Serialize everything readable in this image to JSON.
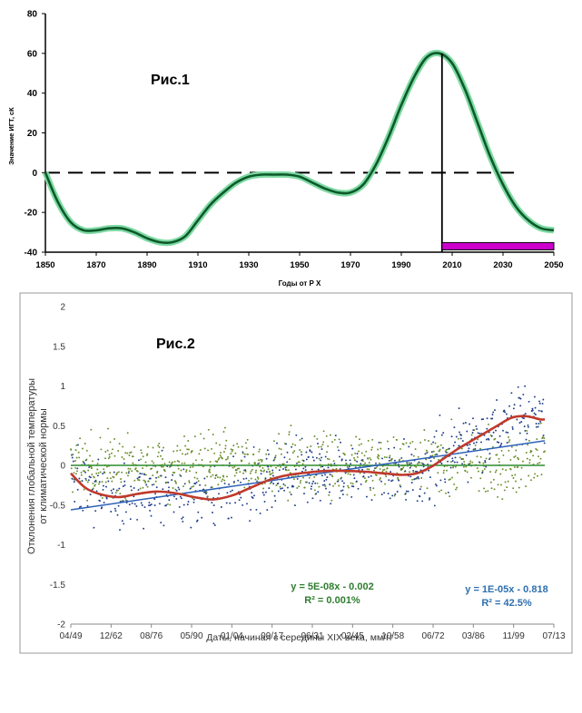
{
  "chart_data": [
    {
      "type": "line",
      "title": "Рис.1",
      "xlabel": "Годы от Р Х",
      "ylabel": "Значение ИГТ, сК",
      "xlim": [
        1850,
        2050
      ],
      "ylim": [
        -40,
        80
      ],
      "xticks": [
        1850,
        1870,
        1890,
        1910,
        1930,
        1950,
        1970,
        1990,
        2010,
        2030,
        2050
      ],
      "yticks": [
        80,
        60,
        40,
        20,
        0,
        -20,
        -40
      ],
      "grid": false,
      "series": [
        {
          "x": [
            1850,
            1855,
            1860,
            1865,
            1870,
            1875,
            1880,
            1885,
            1890,
            1895,
            1900,
            1905,
            1910,
            1915,
            1920,
            1925,
            1930,
            1935,
            1940,
            1945,
            1950,
            1955,
            1960,
            1965,
            1970,
            1975,
            1980,
            1985,
            1990,
            1995,
            2000,
            2005,
            2010,
            2015,
            2020,
            2025,
            2030,
            2035,
            2040,
            2045,
            2050
          ],
          "y": [
            0,
            -15,
            -25,
            -29,
            -29,
            -28,
            -28,
            -30,
            -33,
            -35,
            -35,
            -32,
            -24,
            -16,
            -10,
            -5,
            -2,
            -1,
            -1,
            -1,
            -2,
            -5,
            -8,
            -10,
            -10,
            -6,
            4,
            18,
            34,
            48,
            58,
            60,
            55,
            42,
            25,
            8,
            -6,
            -17,
            -24,
            -28,
            -29
          ]
        }
      ],
      "annotations": {
        "zero_dashed_line": true,
        "vertical_marker_x": 2006,
        "highlight_bar": {
          "x_from": 2006,
          "x_to": 2050,
          "y": -37,
          "color": "#cc00cc"
        }
      },
      "colors": {
        "curve": "#0c5a2a",
        "curve_glow": "#7fd9a3",
        "bar": "#cc00cc"
      }
    },
    {
      "type": "scatter",
      "title": "Рис.2",
      "xlabel": "Даты, начиная с середины XIX века, мм/гг",
      "ylabel": "Отклонения глобальной температуры от климатической нормы",
      "xticks": [
        "04/49",
        "12/62",
        "08/76",
        "05/90",
        "01/04",
        "09/17",
        "06/31",
        "02/45",
        "10/58",
        "06/72",
        "03/86",
        "11/99",
        "07/13"
      ],
      "ylim": [
        -2,
        2
      ],
      "yticks": [
        "2",
        "1.5",
        "1",
        "0.5",
        "0",
        "-0.5",
        "-1",
        "-1.5",
        "-2"
      ],
      "grid": false,
      "series": [
        {
          "kind": "scatter",
          "color": "#6a8f2a"
        },
        {
          "kind": "scatter",
          "color": "#1f3f8a"
        },
        {
          "name": "y = 5E-08x - 0.002",
          "kind": "trend",
          "color": "#2e8b2e",
          "y_start": 0.0,
          "y_end": 0.0
        },
        {
          "name": "y = 1E-05x - 0.818",
          "kind": "trend",
          "color": "#2e62b8",
          "y_start": -0.56,
          "y_end": 0.31
        },
        {
          "kind": "smooth",
          "color": "#c0392b",
          "x": [
            0,
            0.03,
            0.06,
            0.1,
            0.14,
            0.18,
            0.22,
            0.26,
            0.3,
            0.34,
            0.38,
            0.42,
            0.46,
            0.5,
            0.54,
            0.58,
            0.62,
            0.66,
            0.7,
            0.73,
            0.76,
            0.79,
            0.82,
            0.86,
            0.9,
            0.93,
            0.96,
            0.99,
            1.0
          ],
          "y": [
            -0.1,
            -0.28,
            -0.36,
            -0.4,
            -0.36,
            -0.33,
            -0.35,
            -0.4,
            -0.43,
            -0.38,
            -0.28,
            -0.18,
            -0.12,
            -0.09,
            -0.07,
            -0.07,
            -0.08,
            -0.1,
            -0.12,
            -0.1,
            -0.02,
            0.1,
            0.22,
            0.36,
            0.5,
            0.6,
            0.62,
            0.58,
            0.58
          ]
        }
      ],
      "equations": [
        {
          "eq": "y = 5E-08x - 0.002",
          "r2": "R² = 0.001%",
          "color": "#2e7d2e"
        },
        {
          "eq": "y = 1E-05x - 0.818",
          "r2": "R² = 42.5%",
          "color": "#2e6fb0"
        }
      ]
    }
  ]
}
